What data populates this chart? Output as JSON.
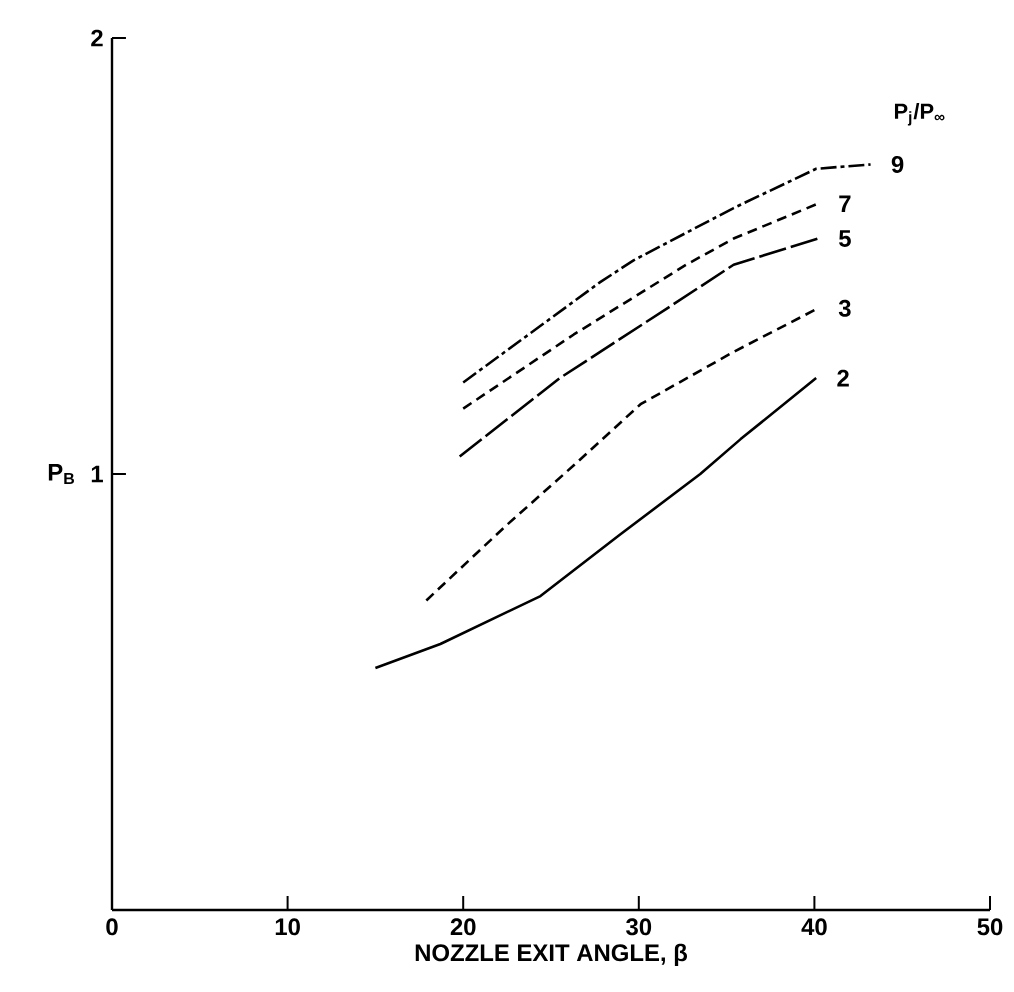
{
  "chart_data": {
    "type": "line",
    "xlabel": "NOZZLE EXIT ANGLE, β",
    "ylabel": "P$_{B}$",
    "legend_title": "P$_{j}$/P$_{∞}$",
    "xlim": [
      0,
      50
    ],
    "ylim": [
      0,
      2
    ],
    "xticks": [
      0,
      10,
      20,
      30,
      40,
      50
    ],
    "yticks": [
      1,
      2
    ],
    "grid": false,
    "marker": "none",
    "series": [
      {
        "name": "2",
        "color": "#000000",
        "line_style": "solid",
        "x": [
          15,
          18.7,
          24.4,
          28.9,
          33.5,
          35.8,
          40.1
        ],
        "values": [
          0.555,
          0.61,
          0.72,
          0.86,
          1.0,
          1.08,
          1.22
        ]
      },
      {
        "name": "3",
        "color": "#000000",
        "line_style": "dashed",
        "x": [
          17.9,
          22.4,
          26.3,
          30.1,
          35.4,
          40.2
        ],
        "values": [
          0.71,
          0.88,
          1.02,
          1.16,
          1.28,
          1.38
        ]
      },
      {
        "name": "5",
        "color": "#000000",
        "line_style": "longdash",
        "x": [
          19.8,
          25.5,
          27.8,
          32.0,
          35.4,
          40.2
        ],
        "values": [
          1.04,
          1.22,
          1.28,
          1.39,
          1.48,
          1.54
        ]
      },
      {
        "name": "7",
        "color": "#000000",
        "line_style": "dashed",
        "x": [
          20.0,
          26.3,
          32.7,
          35.4,
          40.2
        ],
        "values": [
          1.15,
          1.32,
          1.48,
          1.54,
          1.62
        ]
      },
      {
        "name": "9",
        "color": "#000000",
        "line_style": "dashdot",
        "x": [
          20.0,
          27.8,
          29.7,
          35.4,
          40.1,
          43.2
        ],
        "values": [
          1.21,
          1.44,
          1.49,
          1.61,
          1.7,
          1.71
        ]
      }
    ]
  }
}
